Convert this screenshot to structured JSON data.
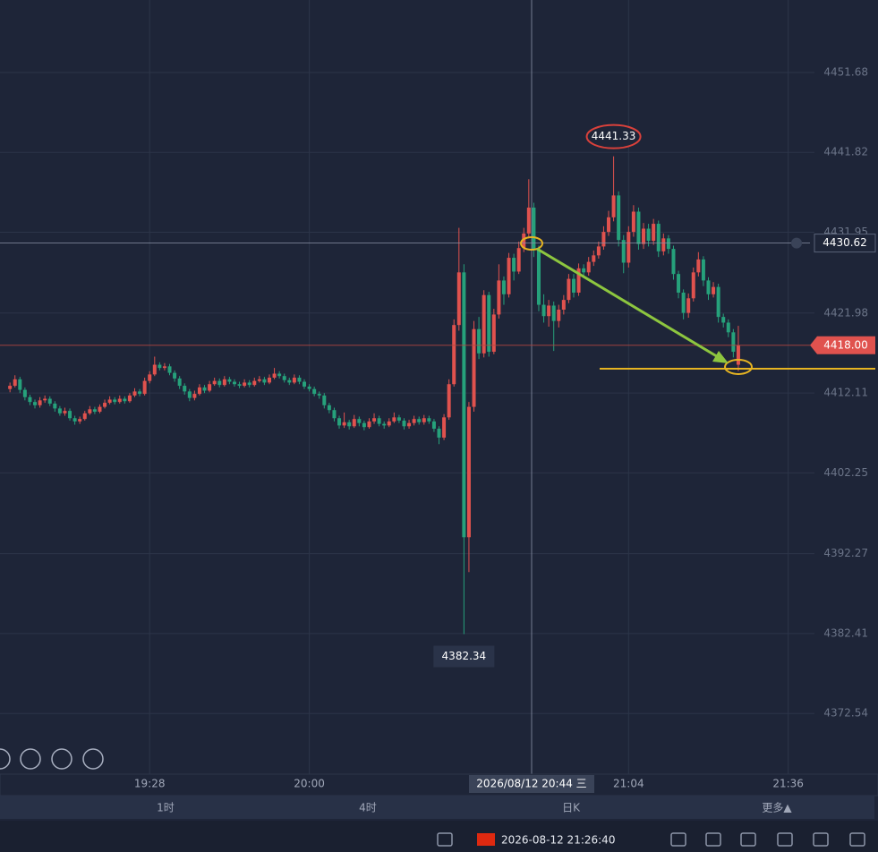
{
  "chart_data": {
    "type": "candlestick",
    "xlim": [
      "18:58",
      "21:54"
    ],
    "ylim": [
      4365.05,
      4460.63
    ],
    "yticks": [
      4451.68,
      4441.82,
      4431.95,
      4421.98,
      4412.11,
      4402.25,
      4392.27,
      4382.41,
      4372.54
    ],
    "xticks": [
      "19:28",
      "20:00",
      "21:04",
      "21:36"
    ],
    "grid": true,
    "up_color": "#e0524e",
    "down_color": "#26a17b",
    "x": [
      "19:00",
      "19:01",
      "19:02",
      "19:03",
      "19:04",
      "19:05",
      "19:06",
      "19:07",
      "19:08",
      "19:09",
      "19:10",
      "19:11",
      "19:12",
      "19:13",
      "19:14",
      "19:15",
      "19:16",
      "19:17",
      "19:18",
      "19:19",
      "19:20",
      "19:21",
      "19:22",
      "19:23",
      "19:24",
      "19:25",
      "19:26",
      "19:27",
      "19:28",
      "19:29",
      "19:30",
      "19:31",
      "19:32",
      "19:33",
      "19:34",
      "19:35",
      "19:36",
      "19:37",
      "19:38",
      "19:39",
      "19:40",
      "19:41",
      "19:42",
      "19:43",
      "19:44",
      "19:45",
      "19:46",
      "19:47",
      "19:48",
      "19:49",
      "19:50",
      "19:51",
      "19:52",
      "19:53",
      "19:54",
      "19:55",
      "19:56",
      "19:57",
      "19:58",
      "19:59",
      "20:00",
      "20:01",
      "20:02",
      "20:03",
      "20:04",
      "20:05",
      "20:06",
      "20:07",
      "20:08",
      "20:09",
      "20:10",
      "20:11",
      "20:12",
      "20:13",
      "20:14",
      "20:15",
      "20:16",
      "20:17",
      "20:18",
      "20:19",
      "20:20",
      "20:21",
      "20:22",
      "20:23",
      "20:24",
      "20:25",
      "20:26",
      "20:27",
      "20:28",
      "20:29",
      "20:30",
      "20:31",
      "20:32",
      "20:33",
      "20:34",
      "20:35",
      "20:36",
      "20:37",
      "20:38",
      "20:39",
      "20:40",
      "20:41",
      "20:42",
      "20:43",
      "20:44",
      "20:45",
      "20:46",
      "20:47",
      "20:48",
      "20:49",
      "20:50",
      "20:51",
      "20:52",
      "20:53",
      "20:54",
      "20:55",
      "20:56",
      "20:57",
      "20:58",
      "20:59",
      "21:00",
      "21:01",
      "21:02",
      "21:03",
      "21:04",
      "21:05",
      "21:06",
      "21:07",
      "21:08",
      "21:09",
      "21:10",
      "21:11",
      "21:12",
      "21:13",
      "21:14",
      "21:15",
      "21:16",
      "21:17",
      "21:18",
      "21:19",
      "21:20",
      "21:21",
      "21:22",
      "21:23",
      "21:24",
      "21:25",
      "21:26"
    ],
    "ohlc": [
      [
        4412.6,
        4413.4,
        4412.2,
        4413.0
      ],
      [
        4413.0,
        4414.3,
        4412.8,
        4413.8
      ],
      [
        4413.8,
        4414.1,
        4412.1,
        4412.5
      ],
      [
        4412.5,
        4412.8,
        4411.2,
        4411.6
      ],
      [
        4411.6,
        4411.9,
        4410.6,
        4411.0
      ],
      [
        4411.0,
        4411.3,
        4410.2,
        4410.6
      ],
      [
        4410.6,
        4411.6,
        4410.3,
        4411.2
      ],
      [
        4411.2,
        4411.8,
        4410.9,
        4411.4
      ],
      [
        4411.4,
        4411.7,
        4410.5,
        4410.8
      ],
      [
        4410.8,
        4411.1,
        4409.8,
        4410.2
      ],
      [
        4410.2,
        4410.5,
        4409.3,
        4409.6
      ],
      [
        4409.6,
        4410.3,
        4409.3,
        4409.9
      ],
      [
        4409.9,
        4410.2,
        4408.7,
        4409.0
      ],
      [
        4409.0,
        4409.3,
        4408.2,
        4408.6
      ],
      [
        4408.6,
        4409.2,
        4408.3,
        4408.9
      ],
      [
        4408.9,
        4409.9,
        4408.7,
        4409.6
      ],
      [
        4409.6,
        4410.5,
        4409.4,
        4410.1
      ],
      [
        4410.1,
        4410.4,
        4409.5,
        4409.8
      ],
      [
        4409.8,
        4410.7,
        4409.6,
        4410.4
      ],
      [
        4410.4,
        4411.3,
        4410.2,
        4410.9
      ],
      [
        4410.9,
        4411.7,
        4410.7,
        4411.3
      ],
      [
        4411.3,
        4411.6,
        4410.7,
        4411.0
      ],
      [
        4411.0,
        4411.8,
        4410.8,
        4411.4
      ],
      [
        4411.4,
        4411.7,
        4410.8,
        4411.1
      ],
      [
        4411.1,
        4412.1,
        4410.9,
        4411.8
      ],
      [
        4411.8,
        4412.7,
        4411.6,
        4412.3
      ],
      [
        4412.3,
        4412.6,
        4411.7,
        4412.0
      ],
      [
        4412.0,
        4414.0,
        4411.8,
        4413.6
      ],
      [
        4413.6,
        4414.8,
        4413.3,
        4414.4
      ],
      [
        4414.4,
        4416.6,
        4414.2,
        4415.6
      ],
      [
        4415.6,
        4415.9,
        4414.9,
        4415.2
      ],
      [
        4415.2,
        4415.8,
        4414.9,
        4415.4
      ],
      [
        4415.4,
        4415.7,
        4414.3,
        4414.6
      ],
      [
        4414.6,
        4414.9,
        4413.5,
        4413.9
      ],
      [
        4413.9,
        4414.2,
        4412.6,
        4413.0
      ],
      [
        4413.0,
        4413.3,
        4411.9,
        4412.3
      ],
      [
        4412.3,
        4412.6,
        4411.1,
        4411.5
      ],
      [
        4411.5,
        4412.4,
        4411.2,
        4412.0
      ],
      [
        4412.0,
        4413.2,
        4411.8,
        4412.8
      ],
      [
        4412.8,
        4413.1,
        4412.1,
        4412.4
      ],
      [
        4412.4,
        4413.6,
        4412.2,
        4413.2
      ],
      [
        4413.2,
        4414.0,
        4413.0,
        4413.6
      ],
      [
        4413.6,
        4413.9,
        4412.8,
        4413.1
      ],
      [
        4413.1,
        4414.2,
        4412.9,
        4413.8
      ],
      [
        4413.8,
        4414.1,
        4413.2,
        4413.5
      ],
      [
        4413.5,
        4413.8,
        4412.9,
        4413.2
      ],
      [
        4413.2,
        4413.5,
        4412.7,
        4413.0
      ],
      [
        4413.0,
        4413.8,
        4412.8,
        4413.4
      ],
      [
        4413.4,
        4413.7,
        4412.8,
        4413.1
      ],
      [
        4413.1,
        4414.0,
        4412.9,
        4413.6
      ],
      [
        4413.6,
        4414.2,
        4413.4,
        4413.8
      ],
      [
        4413.8,
        4414.1,
        4413.1,
        4413.4
      ],
      [
        4413.4,
        4414.4,
        4413.2,
        4414.0
      ],
      [
        4414.0,
        4415.2,
        4413.8,
        4414.5
      ],
      [
        4414.5,
        4414.8,
        4413.9,
        4414.2
      ],
      [
        4414.2,
        4414.5,
        4413.4,
        4413.7
      ],
      [
        4413.7,
        4414.0,
        4413.1,
        4413.4
      ],
      [
        4413.4,
        4414.4,
        4413.2,
        4414.0
      ],
      [
        4414.0,
        4414.3,
        4413.2,
        4413.5
      ],
      [
        4413.5,
        4413.8,
        4412.6,
        4412.9
      ],
      [
        4412.9,
        4413.2,
        4412.3,
        4412.6
      ],
      [
        4412.6,
        4412.9,
        4411.7,
        4412.0
      ],
      [
        4412.0,
        4412.3,
        4411.4,
        4411.8
      ],
      [
        4411.8,
        4412.1,
        4410.2,
        4410.6
      ],
      [
        4410.6,
        4410.9,
        4409.6,
        4410.0
      ],
      [
        4410.0,
        4410.3,
        4408.6,
        4409.0
      ],
      [
        4409.0,
        4409.3,
        4407.7,
        4408.1
      ],
      [
        4408.1,
        4409.7,
        4407.8,
        4408.5
      ],
      [
        4408.5,
        4408.8,
        4407.6,
        4408.0
      ],
      [
        4408.0,
        4409.4,
        4407.8,
        4408.9
      ],
      [
        4408.9,
        4409.2,
        4408.0,
        4408.4
      ],
      [
        4408.4,
        4408.7,
        4407.5,
        4407.9
      ],
      [
        4407.9,
        4409.0,
        4407.7,
        4408.6
      ],
      [
        4408.6,
        4409.6,
        4408.3,
        4409.0
      ],
      [
        4409.0,
        4409.3,
        4408.0,
        4408.3
      ],
      [
        4408.3,
        4408.6,
        4407.7,
        4408.1
      ],
      [
        4408.1,
        4409.0,
        4407.9,
        4408.6
      ],
      [
        4408.6,
        4409.7,
        4408.4,
        4409.1
      ],
      [
        4409.1,
        4409.4,
        4408.4,
        4408.7
      ],
      [
        4408.7,
        4409.0,
        4407.6,
        4408.0
      ],
      [
        4408.0,
        4408.8,
        4407.7,
        4408.4
      ],
      [
        4408.4,
        4409.3,
        4408.1,
        4408.9
      ],
      [
        4408.9,
        4409.2,
        4408.2,
        4408.5
      ],
      [
        4408.5,
        4409.4,
        4408.2,
        4409.0
      ],
      [
        4409.0,
        4409.3,
        4408.3,
        4408.6
      ],
      [
        4408.6,
        4408.9,
        4407.3,
        4407.7
      ],
      [
        4407.7,
        4408.0,
        4405.8,
        4406.6
      ],
      [
        4406.6,
        4409.5,
        4406.3,
        4409.1
      ],
      [
        4409.1,
        4413.8,
        4408.8,
        4413.2
      ],
      [
        4413.2,
        4421.2,
        4412.9,
        4420.5
      ],
      [
        4420.5,
        4432.5,
        4419.8,
        4427.0
      ],
      [
        4427.0,
        4428.0,
        4382.34,
        4394.3
      ],
      [
        4394.3,
        4411.0,
        4390.0,
        4410.4
      ],
      [
        4410.4,
        4421.0,
        4409.8,
        4420.0
      ],
      [
        4420.0,
        4421.5,
        4416.3,
        4417.0
      ],
      [
        4417.0,
        4424.8,
        4416.5,
        4424.2
      ],
      [
        4424.2,
        4424.6,
        4416.6,
        4417.2
      ],
      [
        4417.2,
        4422.5,
        4416.9,
        4421.8
      ],
      [
        4421.8,
        4428.0,
        4421.3,
        4426.0
      ],
      [
        4426.0,
        4426.5,
        4423.0,
        4424.3
      ],
      [
        4424.3,
        4429.4,
        4423.9,
        4428.8
      ],
      [
        4428.8,
        4429.3,
        4426.0,
        4427.1
      ],
      [
        4427.1,
        4430.8,
        4426.8,
        4430.0
      ],
      [
        4430.0,
        4432.5,
        4429.5,
        4431.8
      ],
      [
        4431.8,
        4438.5,
        4431.2,
        4435.0
      ],
      [
        4435.0,
        4435.6,
        4428.9,
        4429.8
      ],
      [
        4429.8,
        4430.3,
        4422.2,
        4423.0
      ],
      [
        4423.0,
        4424.3,
        4420.8,
        4421.6
      ],
      [
        4421.6,
        4423.6,
        4420.3,
        4422.9
      ],
      [
        4422.9,
        4423.4,
        4417.3,
        4421.0
      ],
      [
        4421.0,
        4423.0,
        4420.2,
        4422.4
      ],
      [
        4422.4,
        4424.2,
        4421.8,
        4423.6
      ],
      [
        4423.6,
        4426.8,
        4423.2,
        4426.2
      ],
      [
        4426.2,
        4426.8,
        4423.9,
        4424.5
      ],
      [
        4424.5,
        4428.1,
        4424.1,
        4427.5
      ],
      [
        4427.5,
        4428.0,
        4426.3,
        4427.0
      ],
      [
        4427.0,
        4428.9,
        4426.6,
        4428.3
      ],
      [
        4428.3,
        4429.7,
        4427.8,
        4429.1
      ],
      [
        4429.1,
        4430.8,
        4428.7,
        4430.2
      ],
      [
        4430.2,
        4432.7,
        4429.8,
        4432.0
      ],
      [
        4432.0,
        4434.6,
        4431.5,
        4433.8
      ],
      [
        4433.8,
        4441.33,
        4433.3,
        4436.5
      ],
      [
        4436.5,
        4437.0,
        4430.2,
        4431.0
      ],
      [
        4431.0,
        4431.6,
        4426.9,
        4428.2
      ],
      [
        4428.2,
        4432.7,
        4427.6,
        4432.0
      ],
      [
        4432.0,
        4435.3,
        4431.4,
        4434.5
      ],
      [
        4434.5,
        4435.0,
        4429.8,
        4430.5
      ],
      [
        4430.5,
        4433.1,
        4429.9,
        4432.4
      ],
      [
        4432.4,
        4433.0,
        4430.2,
        4430.9
      ],
      [
        4430.9,
        4433.6,
        4430.4,
        4433.0
      ],
      [
        4433.0,
        4433.4,
        4428.9,
        4429.6
      ],
      [
        4429.6,
        4431.8,
        4429.1,
        4431.2
      ],
      [
        4431.2,
        4431.6,
        4429.3,
        4429.9
      ],
      [
        4429.9,
        4430.3,
        4426.1,
        4426.8
      ],
      [
        4426.8,
        4427.2,
        4423.8,
        4424.5
      ],
      [
        4424.5,
        4424.9,
        4421.2,
        4422.0
      ],
      [
        4422.0,
        4424.4,
        4421.4,
        4423.8
      ],
      [
        4423.8,
        4427.6,
        4423.4,
        4427.0
      ],
      [
        4427.0,
        4429.5,
        4426.5,
        4428.6
      ],
      [
        4428.6,
        4429.0,
        4425.3,
        4426.0
      ],
      [
        4426.0,
        4426.4,
        4423.6,
        4424.3
      ],
      [
        4424.3,
        4425.8,
        4423.9,
        4425.2
      ],
      [
        4425.2,
        4425.6,
        4420.8,
        4421.5
      ],
      [
        4421.5,
        4421.9,
        4420.2,
        4420.8
      ],
      [
        4420.8,
        4421.2,
        4419.0,
        4419.6
      ],
      [
        4419.6,
        4420.0,
        4416.5,
        4417.2
      ],
      [
        4415.6,
        4420.4,
        4414.8,
        4418.0
      ]
    ],
    "high_label": 4441.33,
    "low_label": 4382.34,
    "crosshair": {
      "price": 4430.62,
      "time": "2026/08/12 20:44 三"
    },
    "last_price": {
      "value": 4418,
      "label": "4418.00"
    }
  },
  "tabs": [
    "1时",
    "4时",
    "日K",
    "更多▲"
  ],
  "status": {
    "time": "2026-08-12 21:26:40"
  }
}
